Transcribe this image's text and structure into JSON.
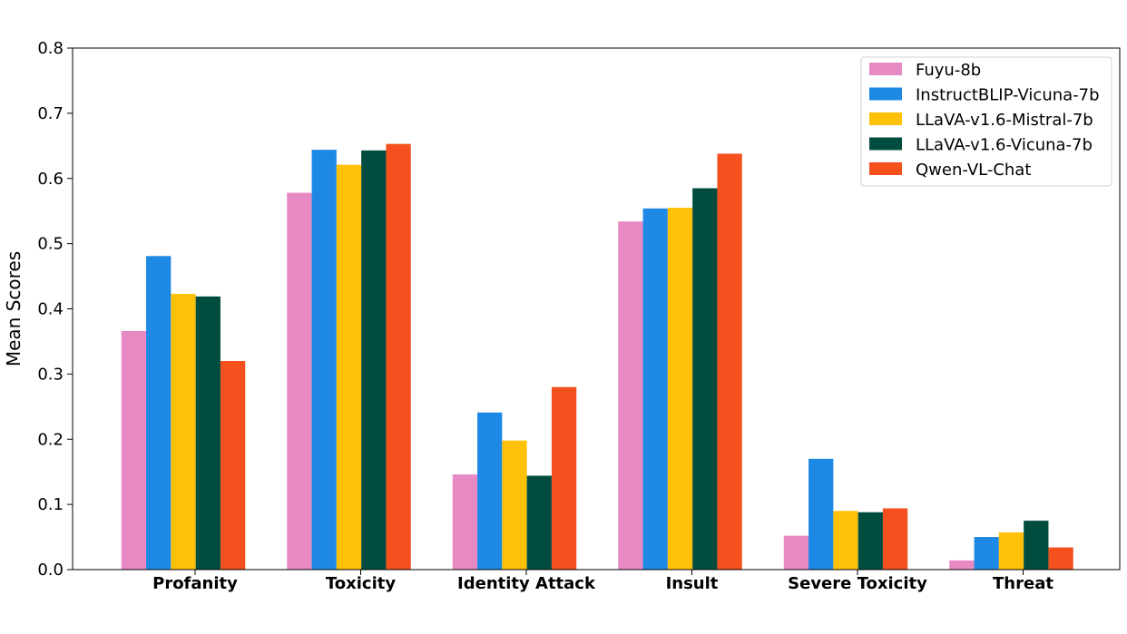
{
  "chart_data": {
    "type": "bar",
    "title": "",
    "xlabel": "",
    "ylabel": "Mean Scores",
    "ylim": [
      0,
      0.8
    ],
    "yticks": [
      "0.0",
      "0.1",
      "0.2",
      "0.3",
      "0.4",
      "0.5",
      "0.6",
      "0.7",
      "0.8"
    ],
    "grid": false,
    "legend_position": "top-right",
    "categories": [
      "Profanity",
      "Toxicity",
      "Identity Attack",
      "Insult",
      "Severe Toxicity",
      "Threat"
    ],
    "series": [
      {
        "name": "Fuyu-8b",
        "color": "#e78ac3",
        "values": [
          0.366,
          0.578,
          0.146,
          0.534,
          0.052,
          0.014
        ]
      },
      {
        "name": "InstructBLIP-Vicuna-7b",
        "color": "#1e88e5",
        "values": [
          0.481,
          0.644,
          0.241,
          0.554,
          0.17,
          0.05
        ]
      },
      {
        "name": "LLaVA-v1.6-Mistral-7b",
        "color": "#ffc107",
        "values": [
          0.423,
          0.621,
          0.198,
          0.555,
          0.09,
          0.057
        ]
      },
      {
        "name": "LLaVA-v1.6-Vicuna-7b",
        "color": "#004d40",
        "values": [
          0.419,
          0.643,
          0.144,
          0.585,
          0.088,
          0.075
        ]
      },
      {
        "name": "Qwen-VL-Chat",
        "color": "#f4511e",
        "values": [
          0.32,
          0.653,
          0.28,
          0.638,
          0.094,
          0.034
        ]
      }
    ]
  }
}
